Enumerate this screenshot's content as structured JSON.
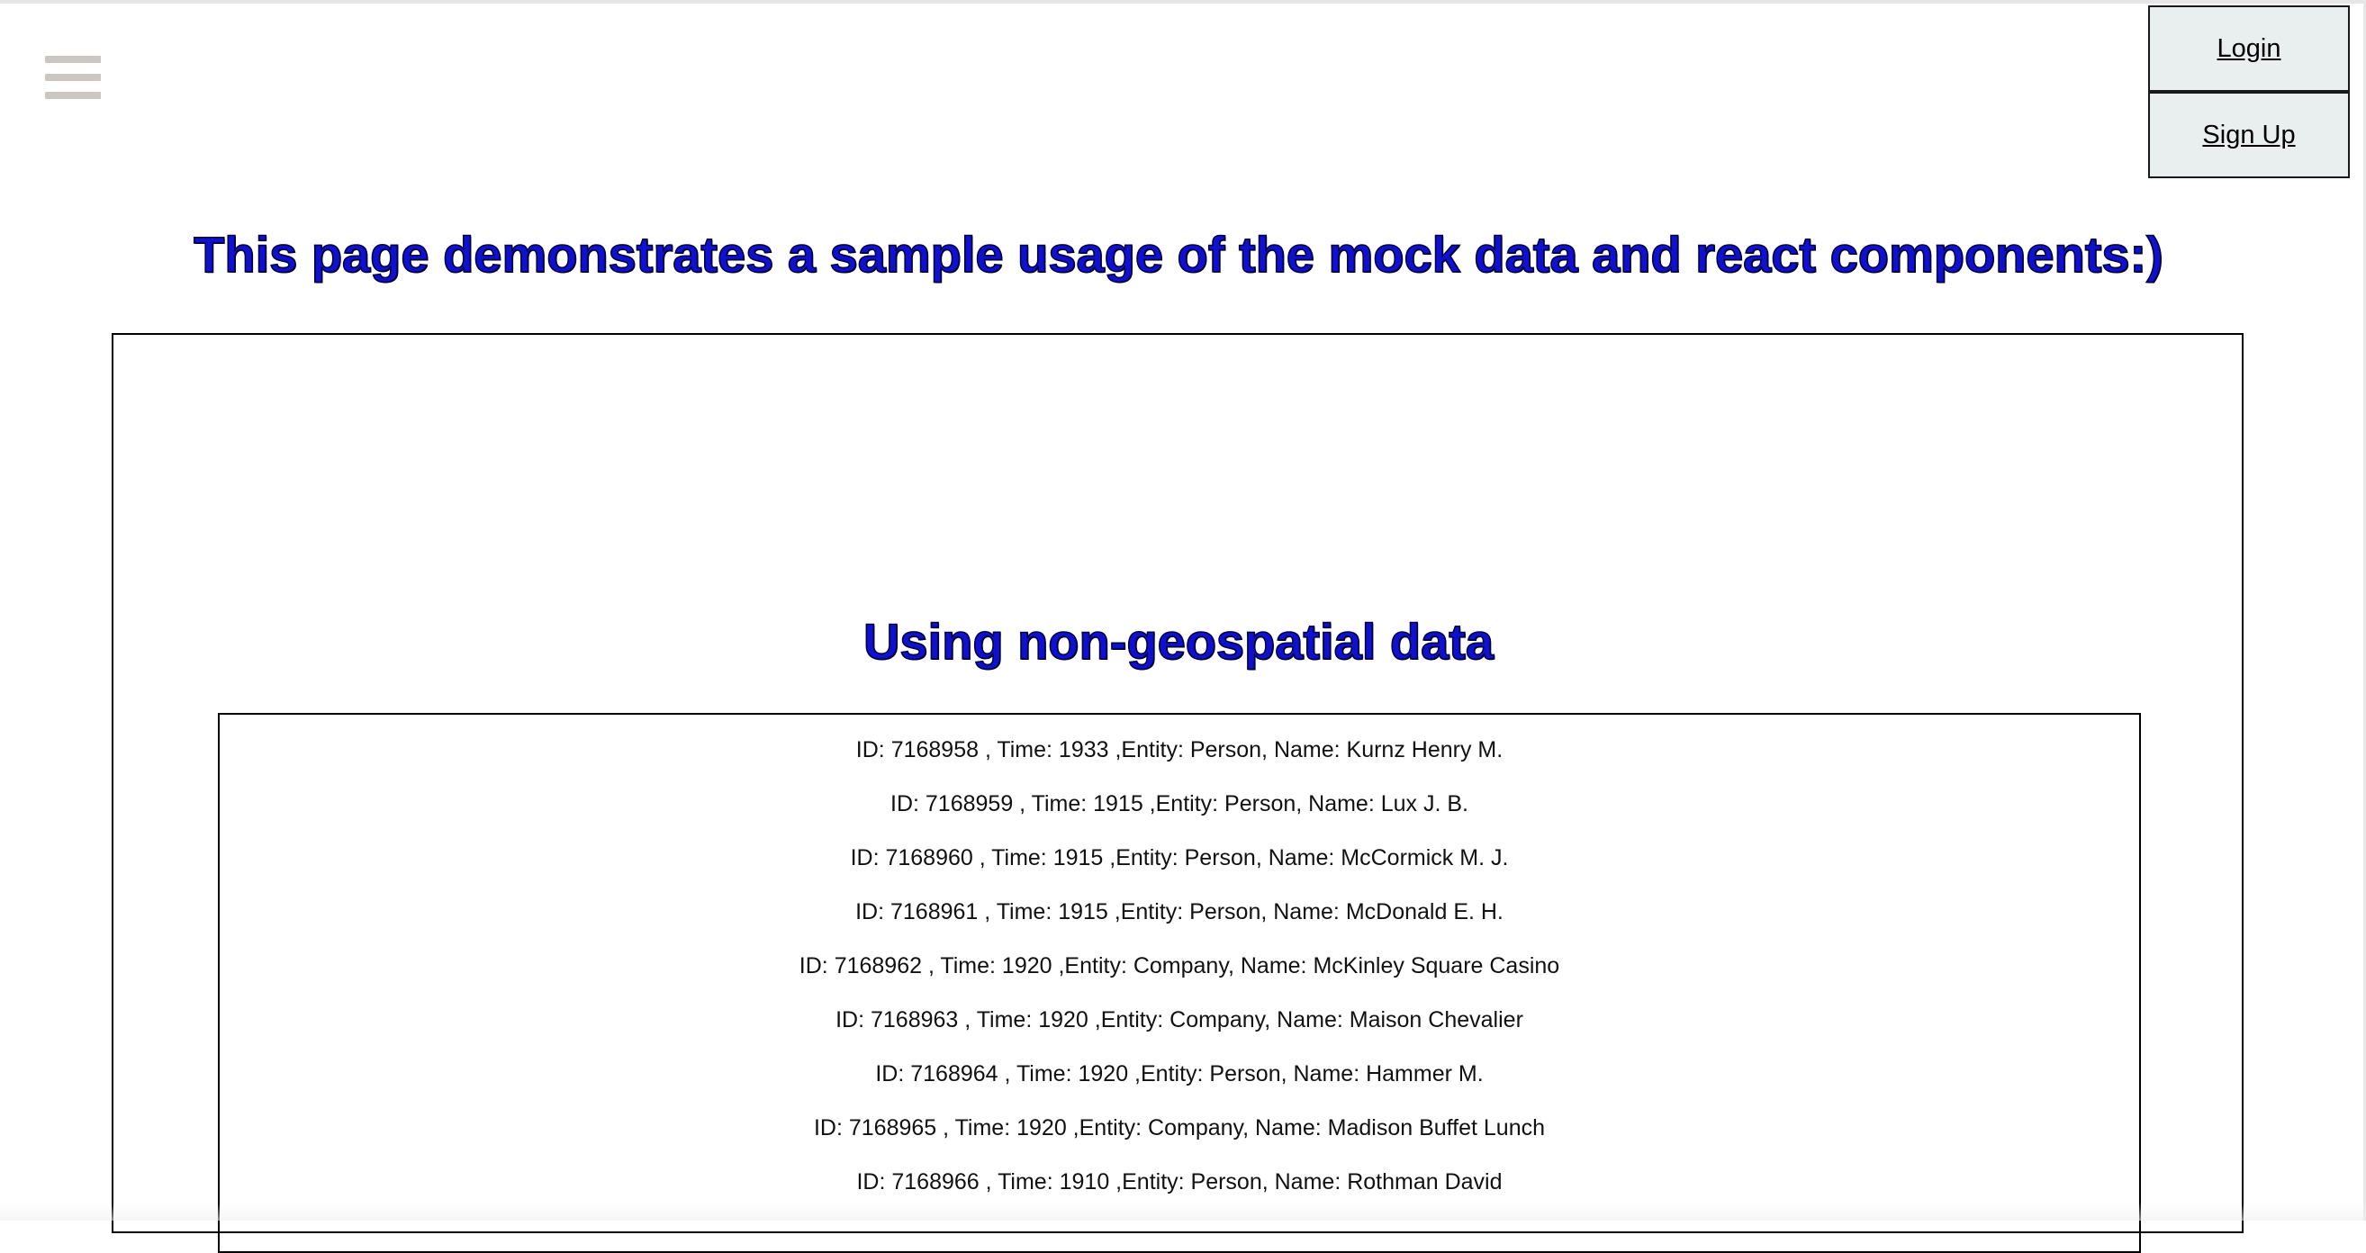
{
  "nav": {
    "menu_icon": "hamburger-menu-icon"
  },
  "auth": {
    "login_label": "Login",
    "signup_label": "Sign Up"
  },
  "page": {
    "headline": "This page demonstrates a sample usage of the mock data and react components:)"
  },
  "section": {
    "title": "Using non-geospatial data"
  },
  "colors": {
    "heading": "#1010cf",
    "auth_button_bg": "#e9efee",
    "menu_icon": "#cbc8c4"
  },
  "records": [
    "ID: 7168958 , Time: 1933 ,Entity: Person, Name: Kurnz Henry M.",
    "ID: 7168959 , Time: 1915 ,Entity: Person, Name: Lux J. B.",
    "ID: 7168960 , Time: 1915 ,Entity: Person, Name: McCormick M. J.",
    "ID: 7168961 , Time: 1915 ,Entity: Person, Name: McDonald E. H.",
    "ID: 7168962 , Time: 1920 ,Entity: Company, Name: McKinley Square Casino",
    "ID: 7168963 , Time: 1920 ,Entity: Company, Name: Maison Chevalier",
    "ID: 7168964 , Time: 1920 ,Entity: Person, Name: Hammer M.",
    "ID: 7168965 , Time: 1920 ,Entity: Company, Name: Madison Buffet Lunch",
    "ID: 7168966 , Time: 1910 ,Entity: Person, Name: Rothman David"
  ]
}
